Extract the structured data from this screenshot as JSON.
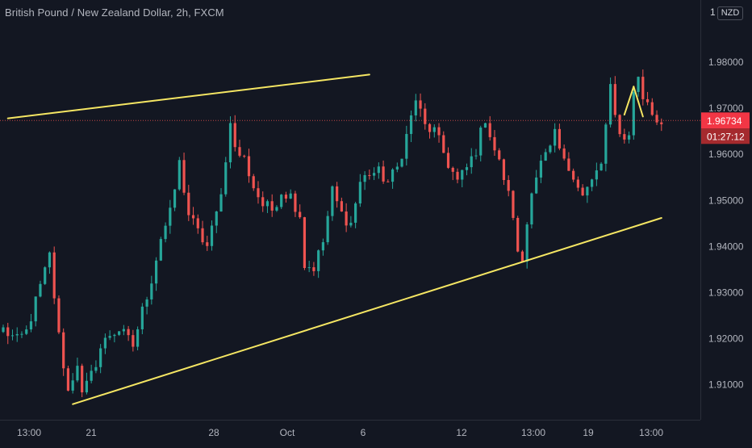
{
  "header": {
    "title": "British Pound / New Zealand Dollar, 2h, FXCM",
    "currency_prefix": "1",
    "currency": "NZD"
  },
  "price_label": {
    "value": "1.96734",
    "countdown": "01:27:12"
  },
  "colors": {
    "background": "#131722",
    "up": "#26a69a",
    "down": "#ef5350",
    "trendline": "#f5e663",
    "axis_text": "#b2b5be",
    "price_badge": "#f23645"
  },
  "chart_data": {
    "type": "candlestick",
    "title": "British Pound / New Zealand Dollar, 2h, FXCM",
    "ylim": [
      1.9005,
      1.9885
    ],
    "y_ticks": [
      1.91,
      1.92,
      1.93,
      1.94,
      1.95,
      1.96,
      1.97,
      1.98
    ],
    "y_tick_labels": [
      "1.91000",
      "1.92000",
      "1.93000",
      "1.94000",
      "1.95000",
      "1.96000",
      "1.97000",
      "1.98000"
    ],
    "x_tick_labels": [
      "13:00",
      "21",
      "28",
      "Oct",
      "6",
      "12",
      "13:00",
      "19",
      "13:00"
    ],
    "current_price": 1.96734,
    "trendlines": [
      {
        "from": [
          1,
          1.9678
        ],
        "to": [
          79,
          1.9773
        ]
      },
      {
        "from": [
          15,
          1.9058
        ],
        "to": [
          142,
          1.9462
        ]
      },
      {
        "from": [
          134,
          1.9686
        ],
        "to": [
          136,
          1.9747
        ]
      },
      {
        "from": [
          136,
          1.9747
        ],
        "to": [
          138,
          1.9682
        ]
      }
    ],
    "candle_count": 143,
    "grid": false,
    "legend": "none"
  }
}
